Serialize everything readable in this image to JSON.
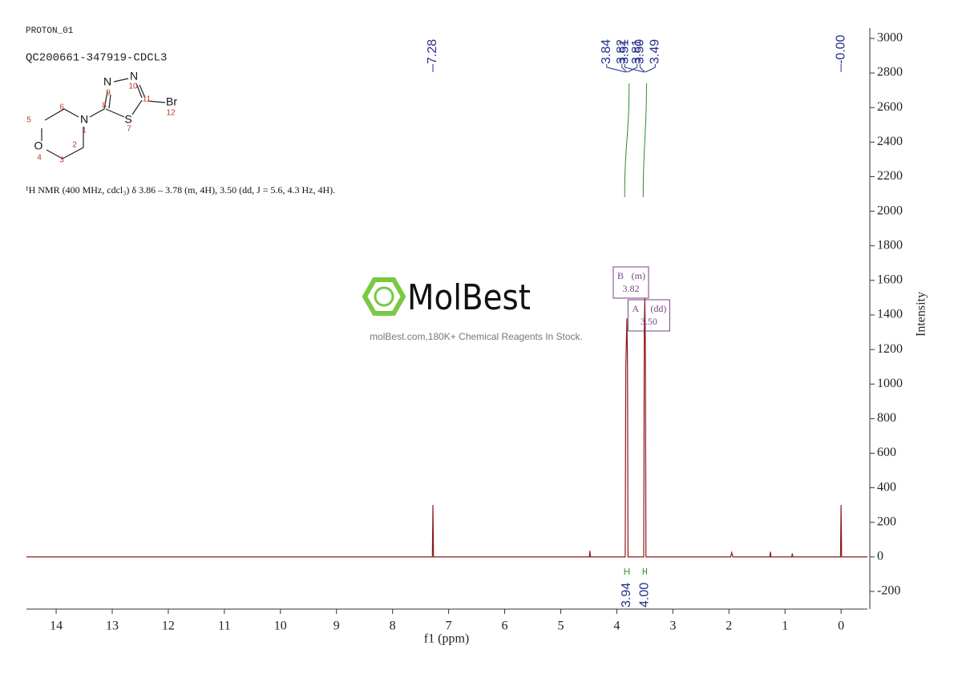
{
  "header": {
    "experiment": "PROTON_01",
    "sample": "QC200661-347919-CDCL3",
    "description": "¹H NMR (400 MHz, cdcl₃) δ 3.86 – 3.78 (m, 4H), 3.50 (dd, J = 5.6, 4.3 Hz, 4H)."
  },
  "molecule": {
    "atoms": [
      {
        "symbol": "N",
        "number": 1
      },
      {
        "number": 2
      },
      {
        "number": 3
      },
      {
        "symbol": "O",
        "number": 4
      },
      {
        "number": 5
      },
      {
        "number": 6
      },
      {
        "symbol": "S",
        "number": 7
      },
      {
        "number": 8
      },
      {
        "symbol": "N",
        "number": 9
      },
      {
        "symbol": "N",
        "number": 10
      },
      {
        "number": 11
      },
      {
        "symbol": "Br",
        "number": 12
      }
    ]
  },
  "watermark": {
    "brand": "MolBest",
    "tagline": "molBest.com,180K+ Chemical Reagents In Stock."
  },
  "chart_data": {
    "type": "line",
    "x_label": "f1 (ppm)",
    "y_label": "Intensity",
    "x": [
      14.53,
      7.29,
      7.28,
      7.27,
      4.49,
      4.48,
      4.47,
      3.85,
      3.84,
      3.82,
      3.81,
      3.8,
      3.52,
      3.51,
      3.5,
      3.49,
      3.48,
      1.97,
      1.95,
      1.93,
      1.27,
      1.26,
      1.25,
      0.88,
      0.87,
      0.86,
      0.01,
      0.0,
      -0.01,
      -0.47
    ],
    "series": [
      {
        "color": "#8b1a1a",
        "values": [
          0,
          0,
          300,
          0,
          0,
          35,
          0,
          0,
          1100,
          1380,
          1150,
          0,
          0,
          1300,
          1500,
          1200,
          0,
          0,
          25,
          0,
          0,
          30,
          0,
          0,
          20,
          0,
          0,
          300,
          0,
          0
        ]
      }
    ],
    "xlim": [
      14.53,
      -0.47
    ],
    "xticks": [
      14,
      13,
      12,
      11,
      10,
      9,
      8,
      7,
      6,
      5,
      4,
      3,
      2,
      1,
      0
    ],
    "ylim": [
      -302,
      3060
    ],
    "yticks": [
      -200,
      0,
      200,
      400,
      600,
      800,
      1000,
      1200,
      1400,
      1600,
      1800,
      2000,
      2200,
      2400,
      2600,
      2800,
      3000
    ],
    "grid": false,
    "peaks": [
      7.28,
      3.84,
      3.82,
      3.81,
      3.51,
      {
        "value": 3.5,
        "label": "3.50"
      },
      3.49,
      {
        "value": 0,
        "label": "-0.00"
      }
    ],
    "integrals": {
      "ranges": [
        [
          3.86,
          3.78
        ],
        [
          3.53,
          3.47
        ]
      ],
      "values": [
        3.94,
        4
      ],
      "value_labels": [
        "3.94",
        "4.00"
      ],
      "color": "#2e8b2e"
    },
    "multiplets": [
      {
        "name": "B",
        "multiplicity": "(m)",
        "shift": 3.82
      },
      {
        "name": "A",
        "multiplicity": "(dd)",
        "shift": {
          "value": 3.5,
          "label": "3.50"
        }
      }
    ]
  }
}
